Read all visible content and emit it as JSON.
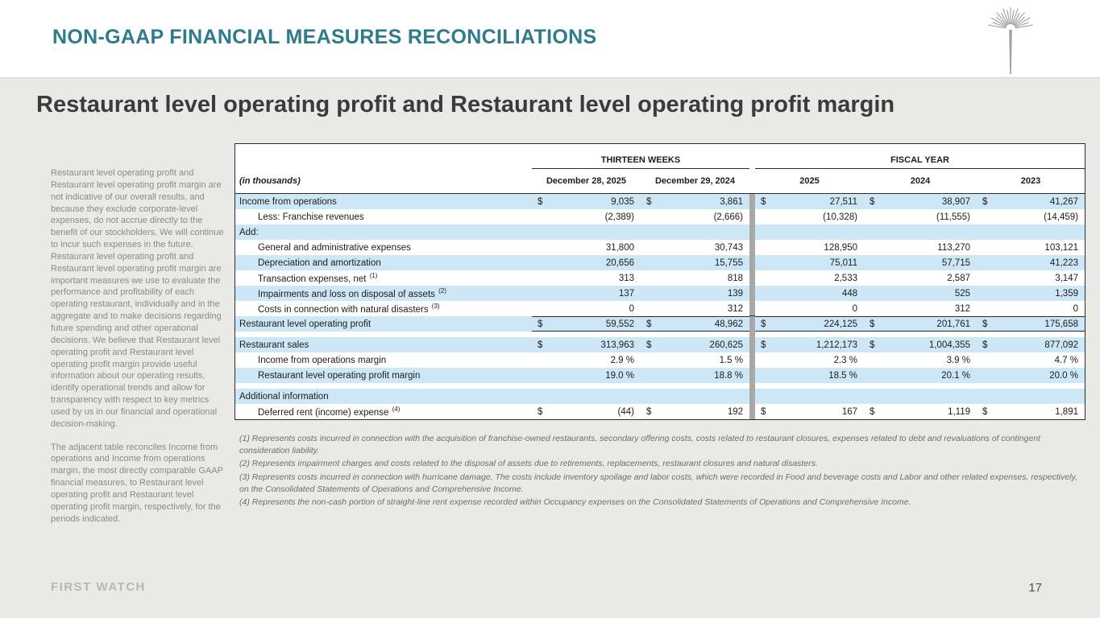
{
  "header": {
    "title": "NON-GAAP FINANCIAL MEASURES RECONCILIATIONS"
  },
  "slide": {
    "title": "Restaurant level operating profit and Restaurant level operating profit margin",
    "logo_text": "FIRST WATCH",
    "page_number": "17"
  },
  "sidebar": {
    "paragraph1": "Restaurant level operating profit and Restaurant level operating profit margin are not indicative of our overall results, and because they exclude corporate-level expenses, do not accrue directly to the benefit of our stockholders. We will continue to incur such expenses in the future. Restaurant level operating profit and Restaurant level operating profit margin are important measures we use to evaluate the performance and profitability of each operating restaurant, individually and in the aggregate and to make decisions regarding future spending and other operational decisions. We believe that Restaurant level operating profit and Restaurant level operating profit margin provide useful information about our operating results, identify operational trends and allow for transparency with respect to key metrics used by us in our financial and operational decision-making.",
    "paragraph2": "The adjacent table reconciles Income from operations and Income from operations margin, the most directly comparable GAAP financial measures, to Restaurant level operating profit and Restaurant level operating profit margin, respectively, for the periods indicated."
  },
  "table": {
    "unit_label": "(in thousands)",
    "group_headers": [
      "THIRTEEN WEEKS",
      "FISCAL YEAR"
    ],
    "columns": [
      "December 28, 2025",
      "December 29, 2024",
      "2025",
      "2024",
      "2023"
    ],
    "rows": [
      {
        "type": "data",
        "label": "Income from operations",
        "dollar": true,
        "shade": true,
        "values": [
          "9,035",
          "3,861",
          "27,511",
          "38,907",
          "41,267"
        ]
      },
      {
        "type": "data",
        "label": "Less: Franchise revenues",
        "indent": true,
        "values": [
          "(2,389)",
          "(2,666)",
          "(10,328)",
          "(11,555)",
          "(14,459)"
        ]
      },
      {
        "type": "section",
        "label": "Add:",
        "shade": true
      },
      {
        "type": "data",
        "label": "General and administrative expenses",
        "indent": true,
        "values": [
          "31,800",
          "30,743",
          "128,950",
          "113,270",
          "103,121"
        ]
      },
      {
        "type": "data",
        "label": "Depreciation and amortization",
        "indent": true,
        "shade": true,
        "values": [
          "20,656",
          "15,755",
          "75,011",
          "57,715",
          "41,223"
        ]
      },
      {
        "type": "data",
        "label": "Transaction expenses, net",
        "sup": "(1)",
        "indent": true,
        "values": [
          "313",
          "818",
          "2,533",
          "2,587",
          "3,147"
        ]
      },
      {
        "type": "data",
        "label": "Impairments and loss on disposal of assets",
        "sup": "(2)",
        "indent": true,
        "shade": true,
        "values": [
          "137",
          "139",
          "448",
          "525",
          "1,359"
        ]
      },
      {
        "type": "data",
        "label": "Costs in connection with natural disasters",
        "sup": "(3)",
        "indent": true,
        "values": [
          "0",
          "312",
          "0",
          "312",
          "0"
        ]
      },
      {
        "type": "data",
        "label": "Restaurant level operating profit",
        "dollar": true,
        "total": true,
        "shade": true,
        "values": [
          "59,552",
          "48,962",
          "224,125",
          "201,761",
          "175,658"
        ]
      },
      {
        "type": "spacer"
      },
      {
        "type": "data",
        "label": "Restaurant sales",
        "dollar": true,
        "shade": true,
        "values": [
          "313,963",
          "260,625",
          "1,212,173",
          "1,004,355",
          "877,092"
        ]
      },
      {
        "type": "data",
        "label": "Income from operations margin",
        "indent": true,
        "values": [
          "2.9 %",
          "1.5 %",
          "2.3 %",
          "3.9 %",
          "4.7 %"
        ]
      },
      {
        "type": "data",
        "label": "Restaurant level operating profit margin",
        "indent": true,
        "shade": true,
        "values": [
          "19.0 %",
          "18.8 %",
          "18.5 %",
          "20.1 %",
          "20.0 %"
        ]
      },
      {
        "type": "spacer"
      },
      {
        "type": "section",
        "label": "Additional information",
        "shade": true
      },
      {
        "type": "data",
        "label": "Deferred rent (income) expense",
        "sup": "(4)",
        "indent": true,
        "dollar": true,
        "values": [
          "(44)",
          "192",
          "167",
          "1,119",
          "1,891"
        ]
      }
    ]
  },
  "footnotes": [
    "(1) Represents costs incurred in connection with the acquisition of franchise-owned restaurants, secondary offering costs, costs related to restaurant closures, expenses related to debt and revaluations of contingent consideration liability.",
    "(2) Represents impairment charges and costs related to the disposal of assets due to retirements, replacements, restaurant closures and natural disasters.",
    "(3) Represents costs incurred in connection with hurricane damage. The costs include inventory spoilage and labor costs, which were recorded in Food and beverage costs and Labor and other related expenses, respectively, on the Consolidated Statements of Operations and Comprehensive Income.",
    "(4) Represents the non-cash portion of straight-line rent expense recorded within Occupancy expenses on the Consolidated Statements of Operations and Comprehensive Income."
  ],
  "colors": {
    "accent_teal": "#2E7B8C",
    "row_highlight": "#CDE7F6",
    "divider_gray": "#A8A8A8"
  }
}
